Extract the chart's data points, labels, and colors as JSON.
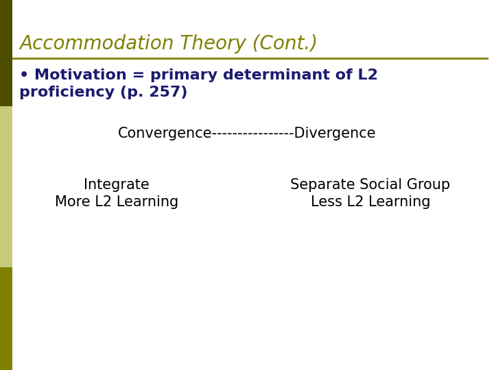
{
  "title": "Accommodation Theory (Cont.)",
  "title_color": "#808000",
  "title_fontsize": 20,
  "background_color": "#FFFFFF",
  "left_bar_color_top": "#4d4d00",
  "left_bar_color_mid": "#c8cc7a",
  "left_bar_color_bot": "#808000",
  "separator_color": "#808000",
  "bullet_text_line1": "• Motivation = primary determinant of L2",
  "bullet_text_line2": "proficiency (p. 257)",
  "bullet_color": "#1a1a6e",
  "bullet_fontsize": 16,
  "convergence_text": "Convergence----------------Divergence",
  "convergence_fontsize": 15,
  "convergence_color": "#000000",
  "left_col_line1": "Integrate",
  "left_col_line2": "More L2 Learning",
  "right_col_line1": "Separate Social Group",
  "right_col_line2": "Less L2 Learning",
  "body_text_color": "#000000",
  "body_fontsize": 15
}
